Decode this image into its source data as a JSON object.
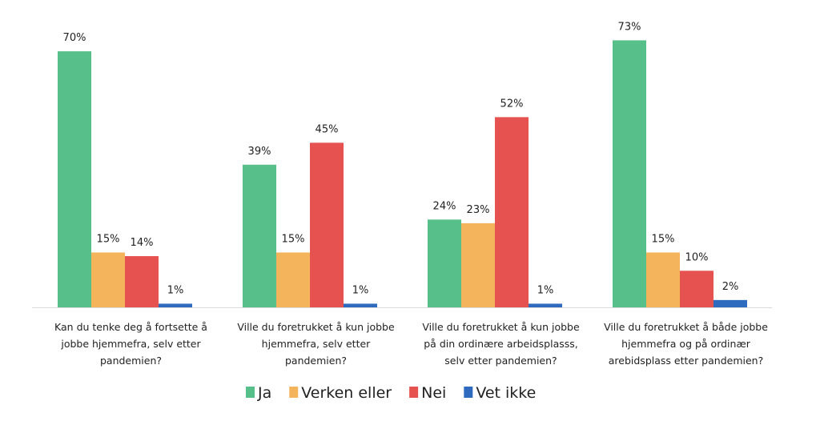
{
  "chart_data": {
    "type": "bar",
    "categories": [
      [
        "Kan du tenke deg å fortsette å",
        "jobbe hjemmefra, selv etter",
        "pandemien?"
      ],
      [
        "Ville du foretrukket å kun jobbe",
        "hjemmefra, selv etter",
        "pandemien?"
      ],
      [
        "Ville du foretrukket å kun jobbe",
        "på din ordinære arbeidsplasss,",
        "selv etter pandemien?"
      ],
      [
        "Ville du foretrukket å både jobbe",
        "hjemmefra og på ordinær",
        "arebidsplass etter pandemien?"
      ]
    ],
    "series": [
      {
        "name": "Ja",
        "color": "#57bf8a",
        "values": [
          70,
          39,
          24,
          73
        ]
      },
      {
        "name": "Verken eller",
        "color": "#f4b45c",
        "values": [
          15,
          15,
          23,
          15
        ]
      },
      {
        "name": "Nei",
        "color": "#e5524f",
        "values": [
          14,
          45,
          52,
          10
        ]
      },
      {
        "name": "Vet ikke",
        "color": "#2e6bbf",
        "values": [
          1,
          1,
          1,
          2
        ]
      }
    ],
    "value_suffix": "%",
    "ylim": [
      0,
      80
    ],
    "grid": false,
    "legend": "bottom"
  }
}
